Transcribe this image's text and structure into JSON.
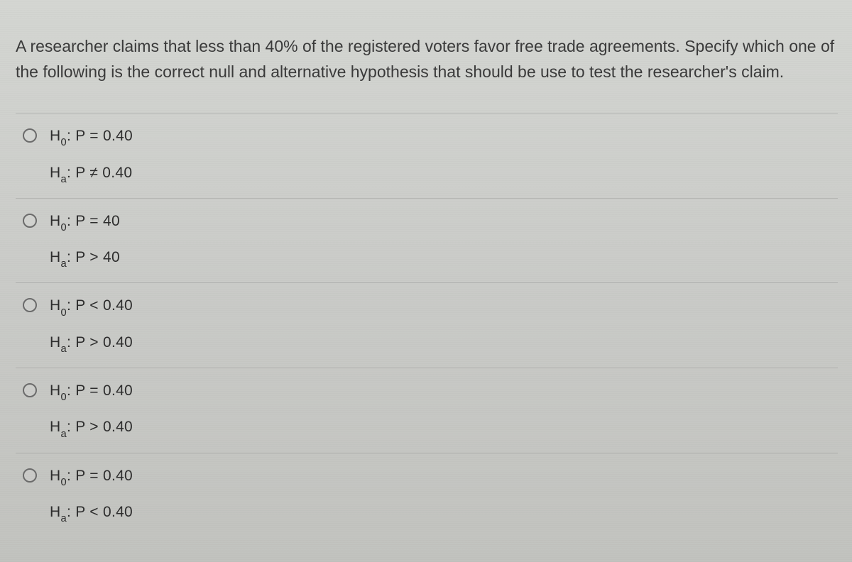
{
  "colors": {
    "background_top": "#d4d6d2",
    "background_bottom": "#c2c3bf",
    "text": "#3a3a3a",
    "hypothesis_text": "#2d2d2d",
    "divider": "rgba(0,0,0,0.12)",
    "radio_border": "#6b6b6b"
  },
  "typography": {
    "question_fontsize": 23,
    "option_fontsize": 21,
    "font_family": "Arial"
  },
  "question": "A researcher claims that less than 40% of the registered voters favor free trade agreements.  Specify which one of the following is the correct null and alternative hypothesis that should be use to test the researcher's claim.",
  "options": [
    {
      "h0_label": "H",
      "h0_sub": "0",
      "h0_text": ":  P = 0.40",
      "ha_label": "H",
      "ha_sub": "a",
      "ha_text": ":  P ≠ 0.40",
      "selected": false
    },
    {
      "h0_label": "H",
      "h0_sub": "0",
      "h0_text": ":  P = 40",
      "ha_label": "H",
      "ha_sub": "a",
      "ha_text": ":  P > 40",
      "selected": false
    },
    {
      "h0_label": "H",
      "h0_sub": "0",
      "h0_text": ":  P < 0.40",
      "ha_label": "H",
      "ha_sub": "a",
      "ha_text": ":  P > 0.40",
      "selected": false
    },
    {
      "h0_label": "H",
      "h0_sub": "0",
      "h0_text": ":  P = 0.40",
      "ha_label": "H",
      "ha_sub": "a",
      "ha_text": ":  P > 0.40",
      "selected": false
    },
    {
      "h0_label": "H",
      "h0_sub": "0",
      "h0_text": ":  P = 0.40",
      "ha_label": "H",
      "ha_sub": "a",
      "ha_text": ":  P < 0.40",
      "selected": false
    }
  ]
}
